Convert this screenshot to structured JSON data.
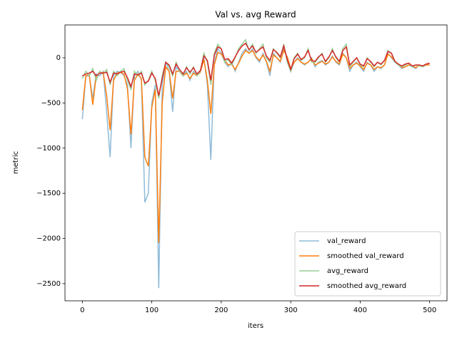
{
  "chart_data": {
    "type": "line",
    "title": "Val vs. avg Reward",
    "xlabel": "iters",
    "ylabel": "metric",
    "x": [
      0,
      5,
      10,
      15,
      20,
      25,
      30,
      35,
      40,
      45,
      50,
      55,
      60,
      65,
      70,
      75,
      80,
      85,
      90,
      95,
      100,
      105,
      110,
      115,
      120,
      125,
      130,
      135,
      140,
      145,
      150,
      155,
      160,
      165,
      170,
      175,
      180,
      185,
      190,
      195,
      200,
      205,
      210,
      215,
      220,
      225,
      230,
      235,
      240,
      245,
      250,
      255,
      260,
      265,
      270,
      275,
      280,
      285,
      290,
      295,
      300,
      305,
      310,
      315,
      320,
      325,
      330,
      335,
      340,
      345,
      350,
      355,
      360,
      365,
      370,
      375,
      380,
      385,
      390,
      395,
      400,
      405,
      410,
      415,
      420,
      425,
      430,
      435,
      440,
      445,
      450,
      455,
      460,
      465,
      470,
      475,
      480,
      485,
      490,
      495,
      500
    ],
    "series": [
      {
        "name": "val_reward",
        "color": "#8fbbd9",
        "values": [
          -680,
          -200,
          -200,
          -450,
          -180,
          -200,
          -150,
          -600,
          -1100,
          -200,
          -150,
          -160,
          -200,
          -300,
          -1000,
          -200,
          -150,
          -250,
          -1600,
          -1500,
          -500,
          -300,
          -2550,
          -300,
          -50,
          -150,
          -600,
          -100,
          -150,
          -200,
          -150,
          -250,
          -150,
          -200,
          -150,
          0,
          -300,
          -1130,
          -50,
          100,
          50,
          -50,
          -100,
          -50,
          -150,
          -50,
          50,
          100,
          50,
          100,
          0,
          -50,
          50,
          -50,
          -200,
          50,
          0,
          -50,
          100,
          0,
          -150,
          -50,
          0,
          -50,
          -80,
          -50,
          0,
          -100,
          -50,
          -30,
          -80,
          -50,
          20,
          -50,
          -80,
          50,
          0,
          -150,
          -80,
          -50,
          -100,
          -150,
          -50,
          -80,
          -150,
          -100,
          -120,
          -80,
          50,
          0,
          -50,
          -80,
          -120,
          -100,
          -80,
          -100,
          -120,
          -80,
          -100,
          -80,
          -80
        ]
      },
      {
        "name": "smoothed val_reward",
        "color": "#ff7f0e",
        "values": [
          -580,
          -200,
          -190,
          -520,
          -200,
          -170,
          -160,
          -420,
          -800,
          -250,
          -170,
          -160,
          -180,
          -350,
          -850,
          -250,
          -180,
          -230,
          -1100,
          -1200,
          -550,
          -350,
          -2050,
          -500,
          -100,
          -150,
          -450,
          -150,
          -150,
          -200,
          -170,
          -230,
          -170,
          -200,
          -160,
          -20,
          -250,
          -620,
          -80,
          60,
          40,
          -30,
          -80,
          -70,
          -130,
          -60,
          20,
          80,
          50,
          80,
          10,
          -30,
          30,
          -40,
          -150,
          30,
          0,
          -40,
          80,
          10,
          -120,
          -50,
          -10,
          -50,
          -70,
          -50,
          -10,
          -80,
          -60,
          -40,
          -70,
          -50,
          10,
          -40,
          -70,
          40,
          0,
          -120,
          -80,
          -60,
          -90,
          -130,
          -60,
          -80,
          -130,
          -100,
          -110,
          -80,
          40,
          10,
          -40,
          -70,
          -110,
          -100,
          -80,
          -90,
          -110,
          -80,
          -90,
          -80,
          -80
        ]
      },
      {
        "name": "avg_reward",
        "color": "#95cf95",
        "values": [
          -230,
          -150,
          -200,
          -120,
          -250,
          -150,
          -180,
          -130,
          -300,
          -150,
          -200,
          -150,
          -120,
          -250,
          -350,
          -150,
          -200,
          -150,
          -300,
          -250,
          -150,
          -250,
          -450,
          -200,
          -50,
          -100,
          -200,
          -50,
          -150,
          -200,
          -100,
          -180,
          -100,
          -200,
          -150,
          50,
          -50,
          -300,
          50,
          150,
          100,
          -50,
          -20,
          -80,
          0,
          100,
          150,
          200,
          80,
          150,
          50,
          100,
          150,
          0,
          -50,
          100,
          50,
          0,
          150,
          -50,
          -150,
          0,
          50,
          -30,
          0,
          100,
          -50,
          -50,
          0,
          50,
          -50,
          0,
          100,
          0,
          -50,
          100,
          150,
          -100,
          -50,
          0,
          -80,
          -100,
          0,
          -50,
          -100,
          -50,
          -80,
          -30,
          80,
          50,
          -50,
          -80,
          -100,
          -80,
          -60,
          -100,
          -80,
          -90,
          -100,
          -70,
          -60
        ]
      },
      {
        "name": "smoothed avg_reward",
        "color": "#d62728",
        "values": [
          -200,
          -180,
          -170,
          -150,
          -200,
          -170,
          -170,
          -160,
          -270,
          -170,
          -180,
          -160,
          -150,
          -220,
          -320,
          -180,
          -190,
          -170,
          -280,
          -260,
          -170,
          -230,
          -420,
          -230,
          -50,
          -80,
          -180,
          -70,
          -130,
          -180,
          -110,
          -160,
          -110,
          -180,
          -140,
          20,
          -30,
          -250,
          30,
          120,
          100,
          -20,
          -10,
          -60,
          10,
          80,
          130,
          160,
          90,
          130,
          60,
          90,
          120,
          20,
          -30,
          90,
          60,
          10,
          130,
          -20,
          -130,
          -10,
          40,
          -20,
          10,
          80,
          -30,
          -40,
          10,
          40,
          -40,
          10,
          80,
          10,
          -40,
          80,
          120,
          -80,
          -40,
          0,
          -70,
          -90,
          -10,
          -40,
          -90,
          -50,
          -70,
          -30,
          70,
          50,
          -40,
          -70,
          -90,
          -70,
          -60,
          -90,
          -80,
          -80,
          -90,
          -70,
          -60
        ]
      }
    ],
    "xlim": [
      -25,
      525
    ],
    "ylim": [
      -2690,
      363
    ],
    "xticks": [
      0,
      100,
      200,
      300,
      400,
      500
    ],
    "yticks": [
      {
        "value": -2500,
        "label": "−2500"
      },
      {
        "value": -2000,
        "label": "−2000"
      },
      {
        "value": -1500,
        "label": "−1500"
      },
      {
        "value": -1000,
        "label": "−1000"
      },
      {
        "value": -500,
        "label": "−500"
      },
      0
    ],
    "legend": "lower right"
  }
}
